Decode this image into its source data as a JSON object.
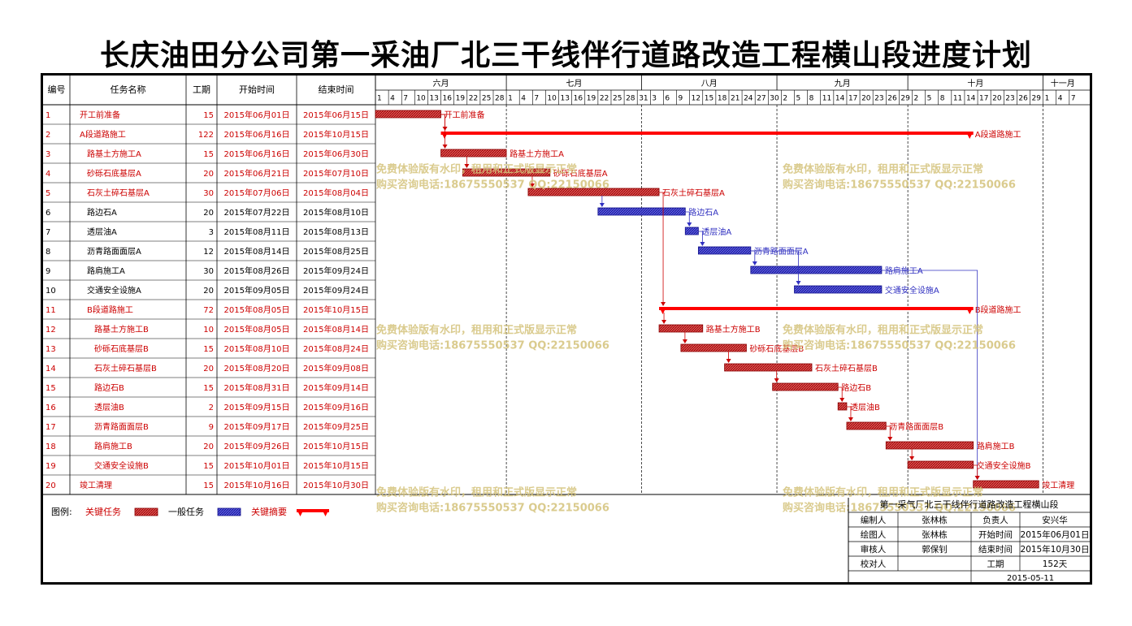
{
  "title": "长庆油田分公司第一采油厂北三干线伴行道路改造工程横山段进度计划",
  "headers": {
    "id": "编号",
    "name": "任务名称",
    "duration": "工期",
    "start": "开始时间",
    "end": "结束时间"
  },
  "months": [
    {
      "label": "六月",
      "start": "2015-06-01",
      "end": "2015-06-30"
    },
    {
      "label": "七月",
      "start": "2015-07-01",
      "end": "2015-07-31"
    },
    {
      "label": "八月",
      "start": "2015-08-01",
      "end": "2015-08-31"
    },
    {
      "label": "九月",
      "start": "2015-09-01",
      "end": "2015-09-30"
    },
    {
      "label": "十月",
      "start": "2015-10-01",
      "end": "2015-10-31"
    },
    {
      "label": "十一月",
      "start": "2015-11-01",
      "end": "2015-11-09"
    }
  ],
  "day_ticks": [
    "2015-06-01",
    "2015-06-04",
    "2015-06-07",
    "2015-06-10",
    "2015-06-13",
    "2015-06-16",
    "2015-06-19",
    "2015-06-22",
    "2015-06-25",
    "2015-06-28",
    "2015-07-01",
    "2015-07-04",
    "2015-07-07",
    "2015-07-10",
    "2015-07-13",
    "2015-07-16",
    "2015-07-19",
    "2015-07-22",
    "2015-07-25",
    "2015-07-28",
    "2015-07-31",
    "2015-08-03",
    "2015-08-06",
    "2015-08-09",
    "2015-08-12",
    "2015-08-15",
    "2015-08-18",
    "2015-08-21",
    "2015-08-24",
    "2015-08-27",
    "2015-08-30",
    "2015-09-02",
    "2015-09-05",
    "2015-09-08",
    "2015-09-11",
    "2015-09-14",
    "2015-09-17",
    "2015-09-20",
    "2015-09-23",
    "2015-09-26",
    "2015-09-29",
    "2015-10-02",
    "2015-10-05",
    "2015-10-08",
    "2015-10-11",
    "2015-10-14",
    "2015-10-17",
    "2015-10-20",
    "2015-10-23",
    "2015-10-26",
    "2015-10-29",
    "2015-11-01",
    "2015-11-04",
    "2015-11-07"
  ],
  "chart_data": {
    "type": "gantt",
    "title": "长庆油田分公司第一采油厂北三干线伴行道路改造工程横山段进度计划",
    "x_range": [
      "2015-06-01",
      "2015-11-09"
    ],
    "tasks": [
      {
        "id": "1",
        "name": "开工前准备",
        "indent": 0,
        "duration": "15",
        "start": "2015年06月01日",
        "end": "2015年06月15日",
        "s": "2015-06-01",
        "e": "2015-06-15",
        "type": "critical",
        "color": "#cc0000",
        "bar_label": "开工前准备"
      },
      {
        "id": "2",
        "name": "A段道路施工",
        "indent": 0,
        "duration": "122",
        "start": "2015年06月16日",
        "end": "2015年10月15日",
        "s": "2015-06-16",
        "e": "2015-10-15",
        "type": "summary",
        "color": "#cc0000",
        "bar_label": "A段道路施工"
      },
      {
        "id": "3",
        "name": "路基土方施工A",
        "indent": 1,
        "duration": "15",
        "start": "2015年06月16日",
        "end": "2015年06月30日",
        "s": "2015-06-16",
        "e": "2015-06-30",
        "type": "critical",
        "color": "#cc0000",
        "bar_label": "路基土方施工A"
      },
      {
        "id": "4",
        "name": "砂砾石底基层A",
        "indent": 1,
        "duration": "20",
        "start": "2015年06月21日",
        "end": "2015年07月10日",
        "s": "2015-06-21",
        "e": "2015-07-10",
        "type": "critical",
        "color": "#cc0000",
        "bar_label": "砂砾石底基层A"
      },
      {
        "id": "5",
        "name": "石灰土碎石基层A",
        "indent": 1,
        "duration": "30",
        "start": "2015年07月06日",
        "end": "2015年08月04日",
        "s": "2015-07-06",
        "e": "2015-08-04",
        "type": "critical",
        "color": "#cc0000",
        "bar_label": "石灰土碎石基层A"
      },
      {
        "id": "6",
        "name": "路边石A",
        "indent": 1,
        "duration": "20",
        "start": "2015年07月22日",
        "end": "2015年08月10日",
        "s": "2015-07-22",
        "e": "2015-08-10",
        "type": "normal",
        "color": "#000000",
        "bar_label": "路边石A"
      },
      {
        "id": "7",
        "name": "透层油A",
        "indent": 1,
        "duration": "3",
        "start": "2015年08月11日",
        "end": "2015年08月13日",
        "s": "2015-08-11",
        "e": "2015-08-13",
        "type": "normal",
        "color": "#000000",
        "bar_label": "透层油A"
      },
      {
        "id": "8",
        "name": "沥青路面面层A",
        "indent": 1,
        "duration": "12",
        "start": "2015年08月14日",
        "end": "2015年08月25日",
        "s": "2015-08-14",
        "e": "2015-08-25",
        "type": "normal",
        "color": "#000000",
        "bar_label": "沥青路面面层A"
      },
      {
        "id": "9",
        "name": "路肩施工A",
        "indent": 1,
        "duration": "30",
        "start": "2015年08月26日",
        "end": "2015年09月24日",
        "s": "2015-08-26",
        "e": "2015-09-24",
        "type": "normal",
        "color": "#000000",
        "bar_label": "路肩施工A"
      },
      {
        "id": "10",
        "name": "交通安全设施A",
        "indent": 1,
        "duration": "20",
        "start": "2015年09月05日",
        "end": "2015年09月24日",
        "s": "2015-09-05",
        "e": "2015-09-24",
        "type": "normal",
        "color": "#000000",
        "bar_label": "交通安全设施A"
      },
      {
        "id": "11",
        "name": "B段道路施工",
        "indent": 1,
        "duration": "72",
        "start": "2015年08月05日",
        "end": "2015年10月15日",
        "s": "2015-08-05",
        "e": "2015-10-15",
        "type": "summary",
        "color": "#cc0000",
        "bar_label": "B段道路施工"
      },
      {
        "id": "12",
        "name": "路基土方施工B",
        "indent": 2,
        "duration": "10",
        "start": "2015年08月05日",
        "end": "2015年08月14日",
        "s": "2015-08-05",
        "e": "2015-08-14",
        "type": "critical",
        "color": "#cc0000",
        "bar_label": "路基土方施工B"
      },
      {
        "id": "13",
        "name": "砂砾石底基层B",
        "indent": 2,
        "duration": "15",
        "start": "2015年08月10日",
        "end": "2015年08月24日",
        "s": "2015-08-10",
        "e": "2015-08-24",
        "type": "critical",
        "color": "#cc0000",
        "bar_label": "砂砾石底基层B"
      },
      {
        "id": "14",
        "name": "石灰土碎石基层B",
        "indent": 2,
        "duration": "20",
        "start": "2015年08月20日",
        "end": "2015年09月08日",
        "s": "2015-08-20",
        "e": "2015-09-08",
        "type": "critical",
        "color": "#cc0000",
        "bar_label": "石灰土碎石基层B"
      },
      {
        "id": "15",
        "name": "路边石B",
        "indent": 2,
        "duration": "15",
        "start": "2015年08月31日",
        "end": "2015年09月14日",
        "s": "2015-08-31",
        "e": "2015-09-14",
        "type": "critical",
        "color": "#cc0000",
        "bar_label": "路边石B"
      },
      {
        "id": "16",
        "name": "透层油B",
        "indent": 2,
        "duration": "2",
        "start": "2015年09月15日",
        "end": "2015年09月16日",
        "s": "2015-09-15",
        "e": "2015-09-16",
        "type": "critical",
        "color": "#cc0000",
        "bar_label": "透层油B"
      },
      {
        "id": "17",
        "name": "沥青路面面层B",
        "indent": 2,
        "duration": "9",
        "start": "2015年09月17日",
        "end": "2015年09月25日",
        "s": "2015-09-17",
        "e": "2015-09-25",
        "type": "critical",
        "color": "#cc0000",
        "bar_label": "沥青路面面层B"
      },
      {
        "id": "18",
        "name": "路肩施工B",
        "indent": 2,
        "duration": "20",
        "start": "2015年09月26日",
        "end": "2015年10月15日",
        "s": "2015-09-26",
        "e": "2015-10-15",
        "type": "critical",
        "color": "#cc0000",
        "bar_label": "路肩施工B"
      },
      {
        "id": "19",
        "name": "交通安全设施B",
        "indent": 2,
        "duration": "15",
        "start": "2015年10月01日",
        "end": "2015年10月15日",
        "s": "2015-10-01",
        "e": "2015-10-15",
        "type": "critical",
        "color": "#cc0000",
        "bar_label": "交通安全设施B"
      },
      {
        "id": "20",
        "name": "竣工清理",
        "indent": 0,
        "duration": "15",
        "start": "2015年10月16日",
        "end": "2015年10月30日",
        "s": "2015-10-16",
        "e": "2015-10-30",
        "type": "critical",
        "color": "#cc0000",
        "bar_label": "竣工清理"
      }
    ],
    "links": [
      [
        1,
        3
      ],
      [
        1,
        2
      ],
      [
        3,
        4
      ],
      [
        4,
        5
      ],
      [
        5,
        6
      ],
      [
        6,
        7
      ],
      [
        7,
        8
      ],
      [
        8,
        9
      ],
      [
        8,
        10
      ],
      [
        5,
        11
      ],
      [
        11,
        12
      ],
      [
        12,
        13
      ],
      [
        13,
        14
      ],
      [
        14,
        15
      ],
      [
        15,
        16
      ],
      [
        16,
        17
      ],
      [
        17,
        18
      ],
      [
        18,
        19
      ],
      [
        9,
        20
      ],
      [
        19,
        20
      ]
    ]
  },
  "legend": {
    "label": "图例:",
    "critical": "关键任务",
    "normal": "一般任务",
    "summary": "关键摘要"
  },
  "colors": {
    "critical": "#cc0000",
    "normal": "#3030c0",
    "summary": "#ff0000",
    "watermark": "#d4c27a"
  },
  "watermark": {
    "line1": "免费体验版有水印，租用和正式版显示正常",
    "line2": "购买咨询电话:18675550537 QQ:22150066"
  },
  "info": {
    "project": "第一采气厂北三干线伴行道路改造工程横山段",
    "rows": [
      [
        "编制人",
        "张林栋",
        "负责人",
        "安兴华"
      ],
      [
        "绘图人",
        "张林栋",
        "开始时间",
        "2015年06月01日"
      ],
      [
        "审核人",
        "郭保钊",
        "结束时间",
        "2015年10月30日"
      ],
      [
        "校对人",
        "",
        "工期",
        "152天"
      ]
    ],
    "date": "2015-05-11"
  }
}
